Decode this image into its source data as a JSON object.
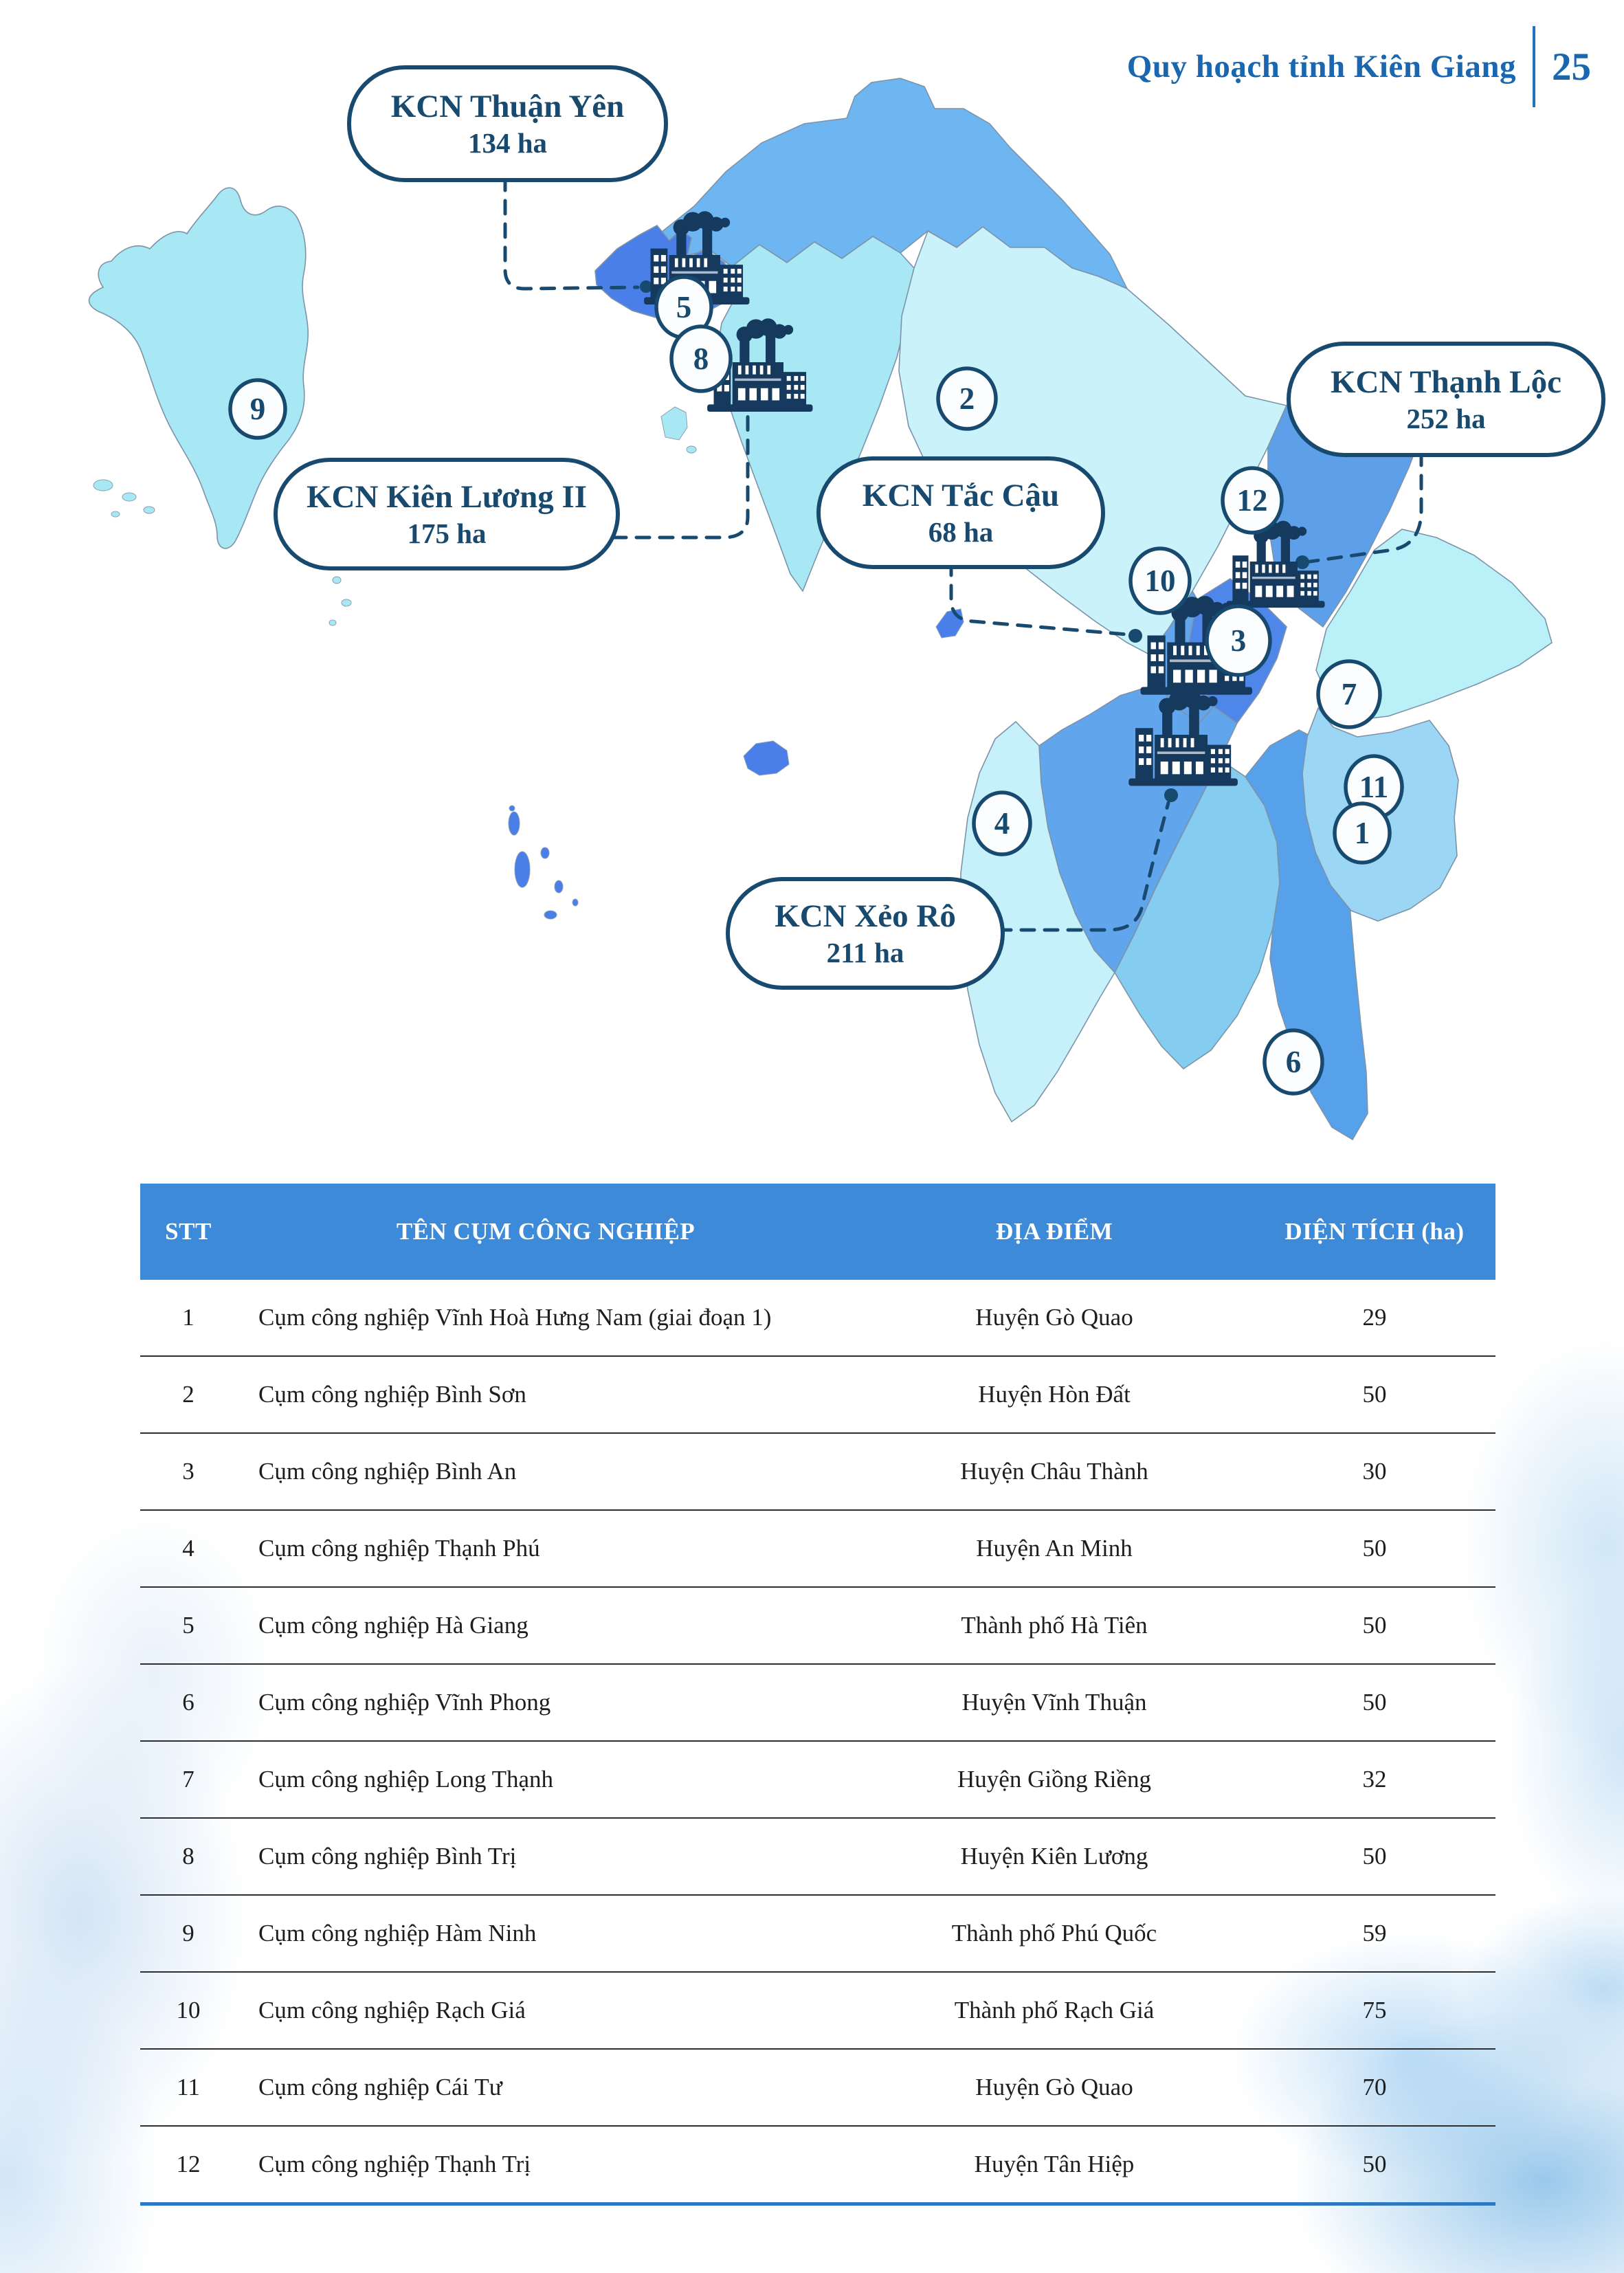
{
  "page": {
    "header_title": "Quy hoạch tỉnh Kiên Giang",
    "page_number": "25"
  },
  "map": {
    "callouts": [
      {
        "name": "KCN Thuận Yên",
        "area": "134 ha"
      },
      {
        "name": "KCN Thạnh Lộc",
        "area": "252 ha"
      },
      {
        "name": "KCN Kiên Lương II",
        "area": "175 ha"
      },
      {
        "name": "KCN Tắc Cậu",
        "area": "68 ha"
      },
      {
        "name": "KCN Xẻo Rô",
        "area": "211 ha"
      }
    ],
    "markers": [
      "9",
      "5",
      "8",
      "2",
      "12",
      "10",
      "3",
      "7",
      "11",
      "1",
      "4",
      "6"
    ]
  },
  "table": {
    "headers": [
      "STT",
      "TÊN CỤM CÔNG NGHIỆP",
      "ĐỊA ĐIỂM",
      "DIỆN TÍCH (ha)"
    ],
    "rows": [
      [
        "1",
        "Cụm công nghiệp Vĩnh Hoà Hưng Nam (giai đoạn 1)",
        "Huyện Gò Quao",
        "29"
      ],
      [
        "2",
        "Cụm công nghiệp Bình Sơn",
        "Huyện Hòn Đất",
        "50"
      ],
      [
        "3",
        "Cụm công nghiệp Bình An",
        "Huyện Châu Thành",
        "30"
      ],
      [
        "4",
        "Cụm công nghiệp Thạnh Phú",
        "Huyện An Minh",
        "50"
      ],
      [
        "5",
        "Cụm công nghiệp Hà Giang",
        "Thành phố Hà Tiên",
        "50"
      ],
      [
        "6",
        "Cụm công nghiệp Vĩnh Phong",
        "Huyện Vĩnh Thuận",
        "50"
      ],
      [
        "7",
        "Cụm công nghiệp Long Thạnh",
        "Huyện Giồng Riềng",
        "32"
      ],
      [
        "8",
        "Cụm công nghiệp Bình Trị",
        "Huyện Kiên Lương",
        "50"
      ],
      [
        "9",
        "Cụm công nghiệp Hàm Ninh",
        "Thành phố Phú Quốc",
        "59"
      ],
      [
        "10",
        "Cụm công nghiệp Rạch Giá",
        "Thành phố Rạch Giá",
        "75"
      ],
      [
        "11",
        "Cụm công nghiệp Cái Tư",
        "Huyện Gò Quao",
        "70"
      ],
      [
        "12",
        "Cụm công nghiệp Thạnh Trị",
        "Huyện Tân Hiệp",
        "50"
      ]
    ]
  },
  "colors": {
    "accent_navy": "#174a6e",
    "header_blue": "#1a67b0",
    "table_header_bg": "#3c8ad8",
    "table_bottom_line": "#2e78c2"
  }
}
